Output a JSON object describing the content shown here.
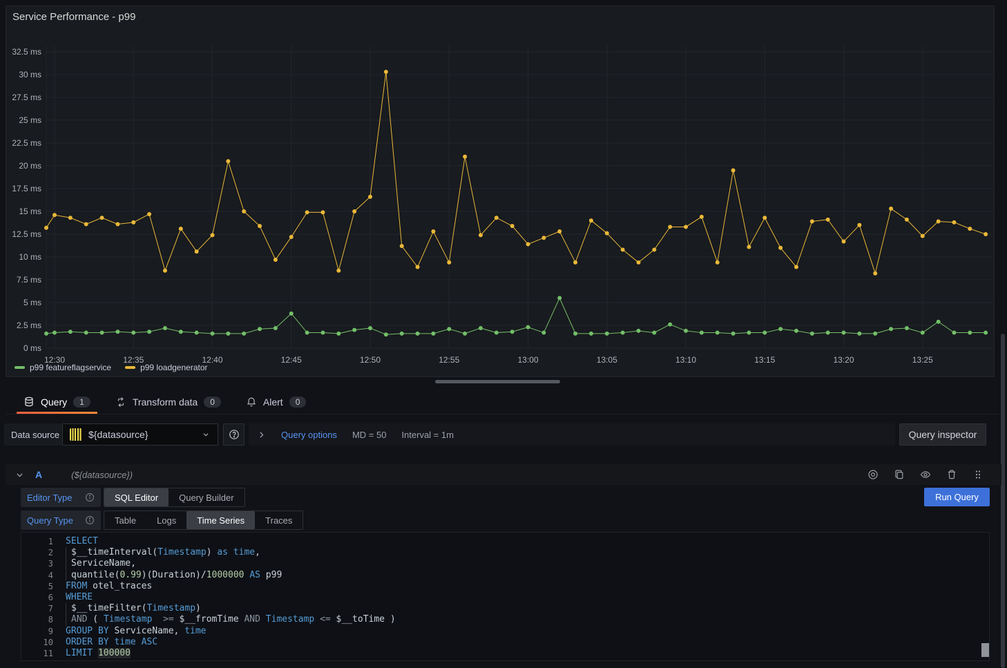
{
  "panel": {
    "title": "Service Performance - p99"
  },
  "chart_data": {
    "type": "line",
    "unit": "ms",
    "ylim": [
      0,
      32.5
    ],
    "grid": true,
    "legend_position": "bottom",
    "y_ticks": [
      0,
      2.5,
      5,
      7.5,
      10,
      12.5,
      15,
      17.5,
      20,
      22.5,
      25,
      27.5,
      30,
      32.5
    ],
    "y_tick_labels": [
      "0 ms",
      "2.5 ms",
      "5 ms",
      "7.5 ms",
      "10 ms",
      "12.5 ms",
      "15 ms",
      "17.5 ms",
      "20 ms",
      "22.5 ms",
      "25 ms",
      "27.5 ms",
      "30 ms",
      "32.5 ms"
    ],
    "x_ticks": [
      "12:30",
      "12:35",
      "12:40",
      "12:45",
      "12:50",
      "12:55",
      "13:00",
      "13:05",
      "13:10",
      "13:15",
      "13:20",
      "13:25"
    ],
    "x": [
      "12:29",
      "12:30",
      "12:31",
      "12:32",
      "12:33",
      "12:34",
      "12:35",
      "12:36",
      "12:37",
      "12:38",
      "12:39",
      "12:40",
      "12:41",
      "12:42",
      "12:43",
      "12:44",
      "12:45",
      "12:46",
      "12:47",
      "12:48",
      "12:49",
      "12:50",
      "12:51",
      "12:52",
      "12:53",
      "12:54",
      "12:55",
      "12:56",
      "12:57",
      "12:58",
      "12:59",
      "13:00",
      "13:01",
      "13:02",
      "13:03",
      "13:04",
      "13:05",
      "13:06",
      "13:07",
      "13:08",
      "13:09",
      "13:10",
      "13:11",
      "13:12",
      "13:13",
      "13:14",
      "13:15",
      "13:16",
      "13:17",
      "13:18",
      "13:19",
      "13:20",
      "13:21",
      "13:22",
      "13:23",
      "13:24",
      "13:25",
      "13:26",
      "13:27",
      "13:28",
      "13:29"
    ],
    "series": [
      {
        "name": "p99 featureflagservice",
        "color": "#73BF69",
        "values": [
          1.6,
          1.7,
          1.8,
          1.7,
          1.7,
          1.8,
          1.7,
          1.8,
          2.2,
          1.8,
          1.7,
          1.6,
          1.6,
          1.6,
          2.1,
          2.2,
          3.8,
          1.7,
          1.7,
          1.6,
          2.0,
          2.2,
          1.5,
          1.6,
          1.6,
          1.6,
          2.1,
          1.6,
          2.2,
          1.7,
          1.8,
          2.3,
          1.7,
          5.5,
          1.6,
          1.6,
          1.6,
          1.7,
          1.9,
          1.7,
          2.6,
          1.9,
          1.7,
          1.7,
          1.6,
          1.7,
          1.7,
          2.1,
          1.9,
          1.6,
          1.7,
          1.7,
          1.6,
          1.6,
          2.1,
          2.2,
          1.7,
          2.9,
          1.7,
          1.7,
          1.7
        ]
      },
      {
        "name": "p99 loadgenerator",
        "color": "#EAB839",
        "values": [
          13.2,
          14.6,
          14.3,
          13.6,
          14.3,
          13.6,
          13.8,
          14.7,
          8.5,
          13.1,
          10.6,
          12.4,
          20.5,
          15.0,
          13.4,
          9.7,
          12.2,
          14.9,
          14.9,
          8.5,
          15.0,
          16.6,
          30.3,
          11.2,
          8.9,
          12.8,
          9.4,
          21.0,
          12.4,
          14.3,
          13.4,
          11.4,
          12.1,
          12.8,
          9.4,
          14.0,
          12.6,
          10.8,
          9.4,
          10.8,
          13.3,
          13.3,
          14.4,
          9.4,
          19.5,
          11.1,
          14.3,
          11.0,
          8.9,
          13.9,
          14.1,
          11.7,
          13.5,
          8.2,
          15.3,
          14.1,
          12.3,
          13.9,
          13.8,
          13.1,
          12.5
        ]
      }
    ]
  },
  "tabs": [
    {
      "label": "Query",
      "count": "1",
      "active": true
    },
    {
      "label": "Transform data",
      "count": "0",
      "active": false
    },
    {
      "label": "Alert",
      "count": "0",
      "active": false
    }
  ],
  "toolbar": {
    "datasource_label": "Data source",
    "datasource_value": "${datasource}",
    "query_options_label": "Query options",
    "max_data_points": "MD = 50",
    "interval": "Interval = 1m",
    "query_inspector_label": "Query inspector"
  },
  "query_editor": {
    "ref_id": "A",
    "datasource_hint": "(${datasource})",
    "editor_type": {
      "label": "Editor Type",
      "options": [
        "SQL Editor",
        "Query Builder"
      ],
      "active": "SQL Editor"
    },
    "query_type": {
      "label": "Query Type",
      "options": [
        "Table",
        "Logs",
        "Time Series",
        "Traces"
      ],
      "active": "Time Series"
    },
    "run_query_label": "Run Query",
    "sql": {
      "lines": [
        {
          "n": 1,
          "indent": false,
          "tokens": [
            [
              "SELECT",
              "kw"
            ]
          ]
        },
        {
          "n": 2,
          "indent": true,
          "tokens": [
            [
              "$__timeInterval(",
              "df"
            ],
            [
              "Timestamp",
              "kw"
            ],
            [
              ") ",
              "df"
            ],
            [
              "as",
              "kw"
            ],
            [
              " ",
              "df"
            ],
            [
              "time",
              "kw"
            ],
            [
              ",",
              "df"
            ]
          ]
        },
        {
          "n": 3,
          "indent": true,
          "tokens": [
            [
              "ServiceName,",
              "df"
            ]
          ]
        },
        {
          "n": 4,
          "indent": true,
          "tokens": [
            [
              "quantile(",
              "df"
            ],
            [
              "0.99",
              "num"
            ],
            [
              ")(Duration)/",
              "df"
            ],
            [
              "1000000",
              "num"
            ],
            [
              " ",
              "df"
            ],
            [
              "AS",
              "kw"
            ],
            [
              " p99",
              "df"
            ]
          ]
        },
        {
          "n": 5,
          "indent": false,
          "tokens": [
            [
              "FROM",
              "kw"
            ],
            [
              " otel_traces",
              "df"
            ]
          ]
        },
        {
          "n": 6,
          "indent": false,
          "tokens": [
            [
              "WHERE",
              "kw"
            ]
          ]
        },
        {
          "n": 7,
          "indent": true,
          "tokens": [
            [
              "$__timeFilter(",
              "df"
            ],
            [
              "Timestamp",
              "kw"
            ],
            [
              ")",
              "df"
            ]
          ]
        },
        {
          "n": 8,
          "indent": true,
          "tokens": [
            [
              "AND",
              "op"
            ],
            [
              " ( ",
              "df"
            ],
            [
              "Timestamp",
              "kw"
            ],
            [
              "  ",
              "df"
            ],
            [
              ">=",
              "op"
            ],
            [
              " $__fromTime ",
              "df"
            ],
            [
              "AND",
              "op"
            ],
            [
              " ",
              "df"
            ],
            [
              "Timestamp",
              "kw"
            ],
            [
              " ",
              "df"
            ],
            [
              "<=",
              "op"
            ],
            [
              " $__toTime )",
              "df"
            ]
          ]
        },
        {
          "n": 9,
          "indent": false,
          "tokens": [
            [
              "GROUP BY",
              "kw"
            ],
            [
              " ServiceName, ",
              "df"
            ],
            [
              "time",
              "kw"
            ]
          ]
        },
        {
          "n": 10,
          "indent": false,
          "tokens": [
            [
              "ORDER BY",
              "kw"
            ],
            [
              " ",
              "df"
            ],
            [
              "time",
              "kw"
            ],
            [
              " ",
              "df"
            ],
            [
              "ASC",
              "kw"
            ]
          ]
        },
        {
          "n": 11,
          "indent": false,
          "tokens": [
            [
              "LIMIT",
              "kw"
            ],
            [
              " ",
              "df"
            ],
            [
              "100000",
              "numhl"
            ]
          ]
        }
      ]
    }
  }
}
